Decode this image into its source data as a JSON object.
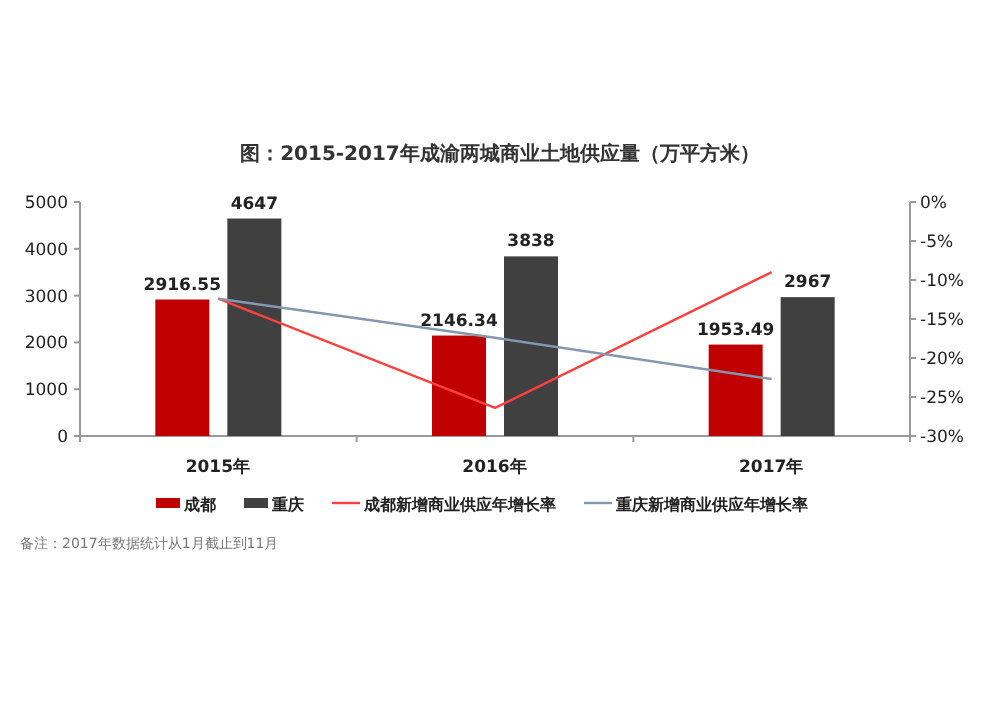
{
  "chart_data": {
    "type": "bar",
    "title": "图：2015-2017年成渝两城商业土地供应量（万平方米）",
    "categories": [
      "2015年",
      "2016年",
      "2017年"
    ],
    "series": [
      {
        "name": "成都",
        "color": "#c00000",
        "values": [
          2916.55,
          2146.34,
          1953.49
        ],
        "value_labels": [
          "2916.55",
          "2146.34",
          "1953.49"
        ]
      },
      {
        "name": "重庆",
        "color": "#404040",
        "values": [
          4647,
          3838,
          2967
        ],
        "value_labels": [
          "4647",
          "3838",
          "2967"
        ]
      },
      {
        "name": "成都新增商业供应年增长率",
        "type": "line",
        "axis": "y2",
        "color": "#ff4040",
        "values": [
          -12.4,
          -26.4,
          -9.0
        ]
      },
      {
        "name": "重庆新增商业供应年增长率",
        "type": "line",
        "axis": "y2",
        "color": "#8496b0",
        "values": [
          -12.4,
          -17.4,
          -22.7
        ]
      }
    ],
    "ylim": [
      0,
      5000
    ],
    "yticks": [
      0,
      1000,
      2000,
      3000,
      4000,
      5000
    ],
    "y2lim": [
      -30,
      0
    ],
    "y2ticks": [
      {
        "value": 0,
        "label": "0%"
      },
      {
        "value": -5,
        "label": "-5%"
      },
      {
        "value": -10,
        "label": "-10%"
      },
      {
        "value": -15,
        "label": "-15%"
      },
      {
        "value": -20,
        "label": "-20%"
      },
      {
        "value": -25,
        "label": "-25%"
      },
      {
        "value": -30,
        "label": "-30%"
      }
    ],
    "legend": "bottom",
    "marker": "none",
    "annotations": [
      "备注：2017年数据统计从1月截止到11月"
    ]
  }
}
